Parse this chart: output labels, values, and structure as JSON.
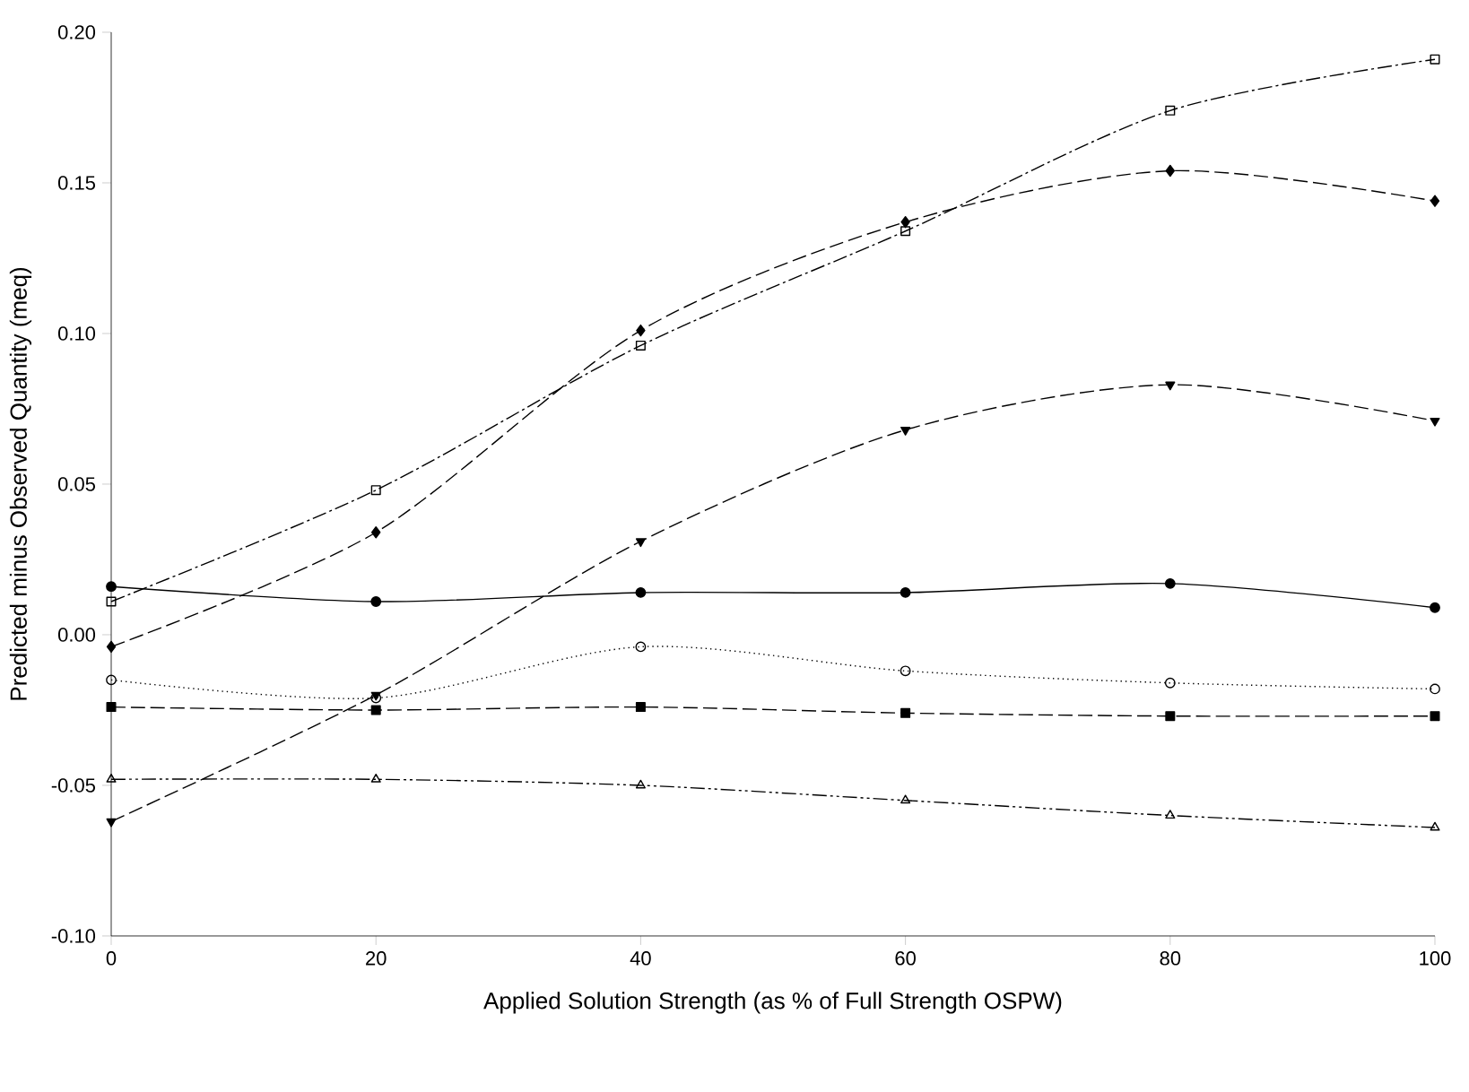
{
  "chart_data": {
    "type": "line",
    "xlabel": "Applied Solution Strength (as % of Full Strength OSPW)",
    "ylabel": "Predicted minus Observed Quantity (meq)",
    "x": [
      0,
      20,
      40,
      60,
      80,
      100
    ],
    "xlim": [
      0,
      100
    ],
    "xticks": [
      0,
      20,
      40,
      60,
      80,
      100
    ],
    "ylim": [
      -0.1,
      0.2
    ],
    "yticks": [
      {
        "value": -0.1,
        "label": "-0.10"
      },
      {
        "value": -0.05,
        "label": "-0.05"
      },
      {
        "value": 0,
        "label": "0.00"
      },
      {
        "value": 0.05,
        "label": "0.05"
      },
      {
        "value": 0.1,
        "label": "0.10"
      },
      {
        "value": 0.15,
        "label": "0.15"
      },
      {
        "value": 0.2,
        "label": "0.20"
      }
    ],
    "grid": false,
    "series": [
      {
        "color": "#000000",
        "marker": "square-open",
        "line_style": "dashdot",
        "values": [
          0.011,
          0.048,
          0.096,
          0.134,
          0.174,
          0.191
        ]
      },
      {
        "color": "#000000",
        "marker": "diamond",
        "line_style": "dashed",
        "values": [
          -0.004,
          0.034,
          0.101,
          0.137,
          0.154,
          0.144
        ]
      },
      {
        "color": "#000000",
        "marker": "triangle-down",
        "line_style": "dashed",
        "values": [
          -0.062,
          -0.02,
          0.031,
          0.068,
          0.083,
          0.071
        ]
      },
      {
        "color": "#000000",
        "marker": "circle",
        "line_style": "solid",
        "values": [
          0.016,
          0.011,
          0.014,
          0.014,
          0.017,
          0.009
        ]
      },
      {
        "color": "#000000",
        "marker": "circle-open",
        "line_style": "dotted",
        "values": [
          -0.015,
          -0.021,
          -0.004,
          -0.012,
          -0.016,
          -0.018
        ]
      },
      {
        "color": "#000000",
        "marker": "square",
        "line_style": "dashed",
        "values": [
          -0.024,
          -0.025,
          -0.024,
          -0.026,
          -0.027,
          -0.027
        ]
      },
      {
        "color": "#000000",
        "marker": "triangle-open",
        "line_style": "dashdotdot",
        "values": [
          -0.048,
          -0.048,
          -0.05,
          -0.055,
          -0.06,
          -0.064
        ]
      }
    ]
  }
}
